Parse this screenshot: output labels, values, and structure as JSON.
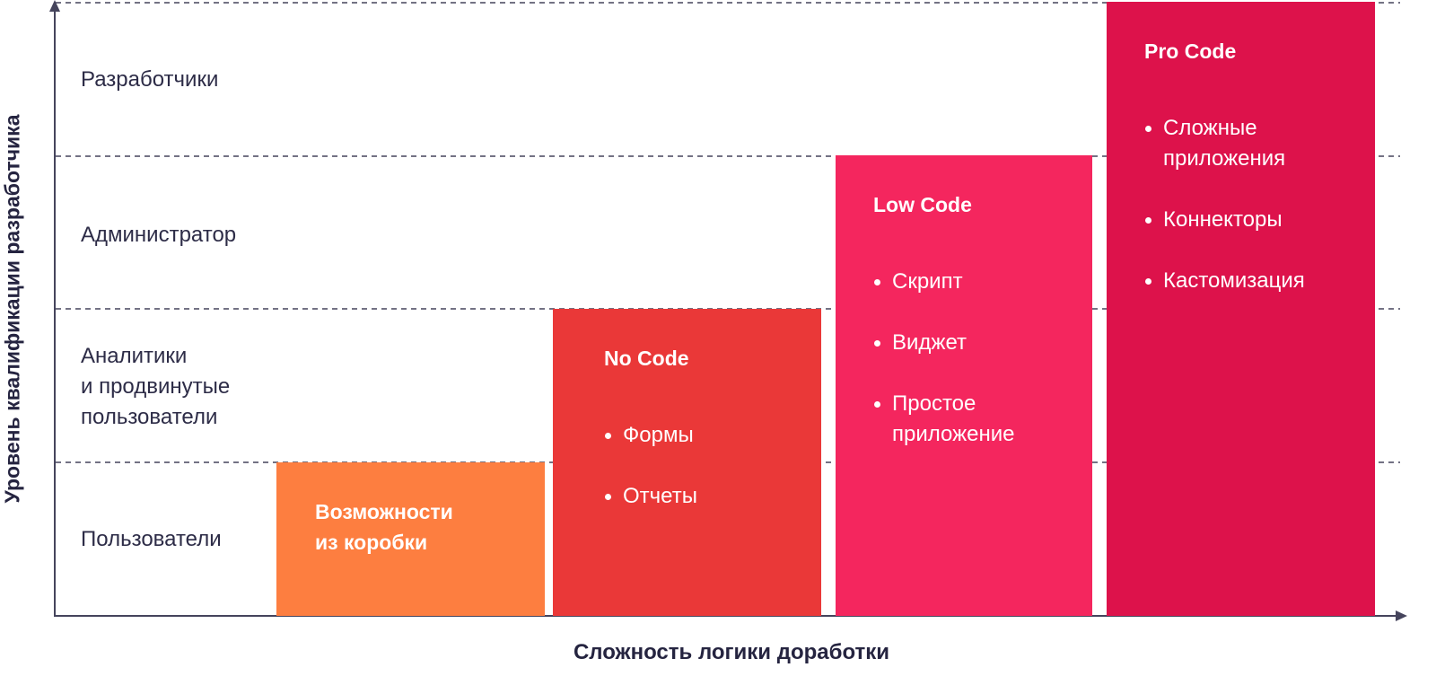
{
  "y_axis": {
    "label": "Уровень квалификации разработчика"
  },
  "x_axis": {
    "label": "Сложность логики доработки"
  },
  "rows": [
    {
      "label": "Разработчики"
    },
    {
      "label": "Администратор"
    },
    {
      "label": "Аналитики\nи продвинутые\nпользователи"
    },
    {
      "label": "Пользователи"
    }
  ],
  "blocks": [
    {
      "title": "Возможности\nиз коробки",
      "items": [],
      "color": "#fd7e40"
    },
    {
      "title": "No Code",
      "items": [
        "Формы",
        "Отчеты"
      ],
      "color": "#ea3838"
    },
    {
      "title": "Low Code",
      "items": [
        "Скрипт",
        "Виджет",
        "Простое\nприложение"
      ],
      "color": "#f4265e"
    },
    {
      "title": "Pro Code",
      "items": [
        "Сложные\nприложения",
        "Коннекторы",
        "Кастомизация"
      ],
      "color": "#dd124b"
    }
  ],
  "colors": {
    "axis": "#45445c",
    "text": "#2d2c47"
  }
}
